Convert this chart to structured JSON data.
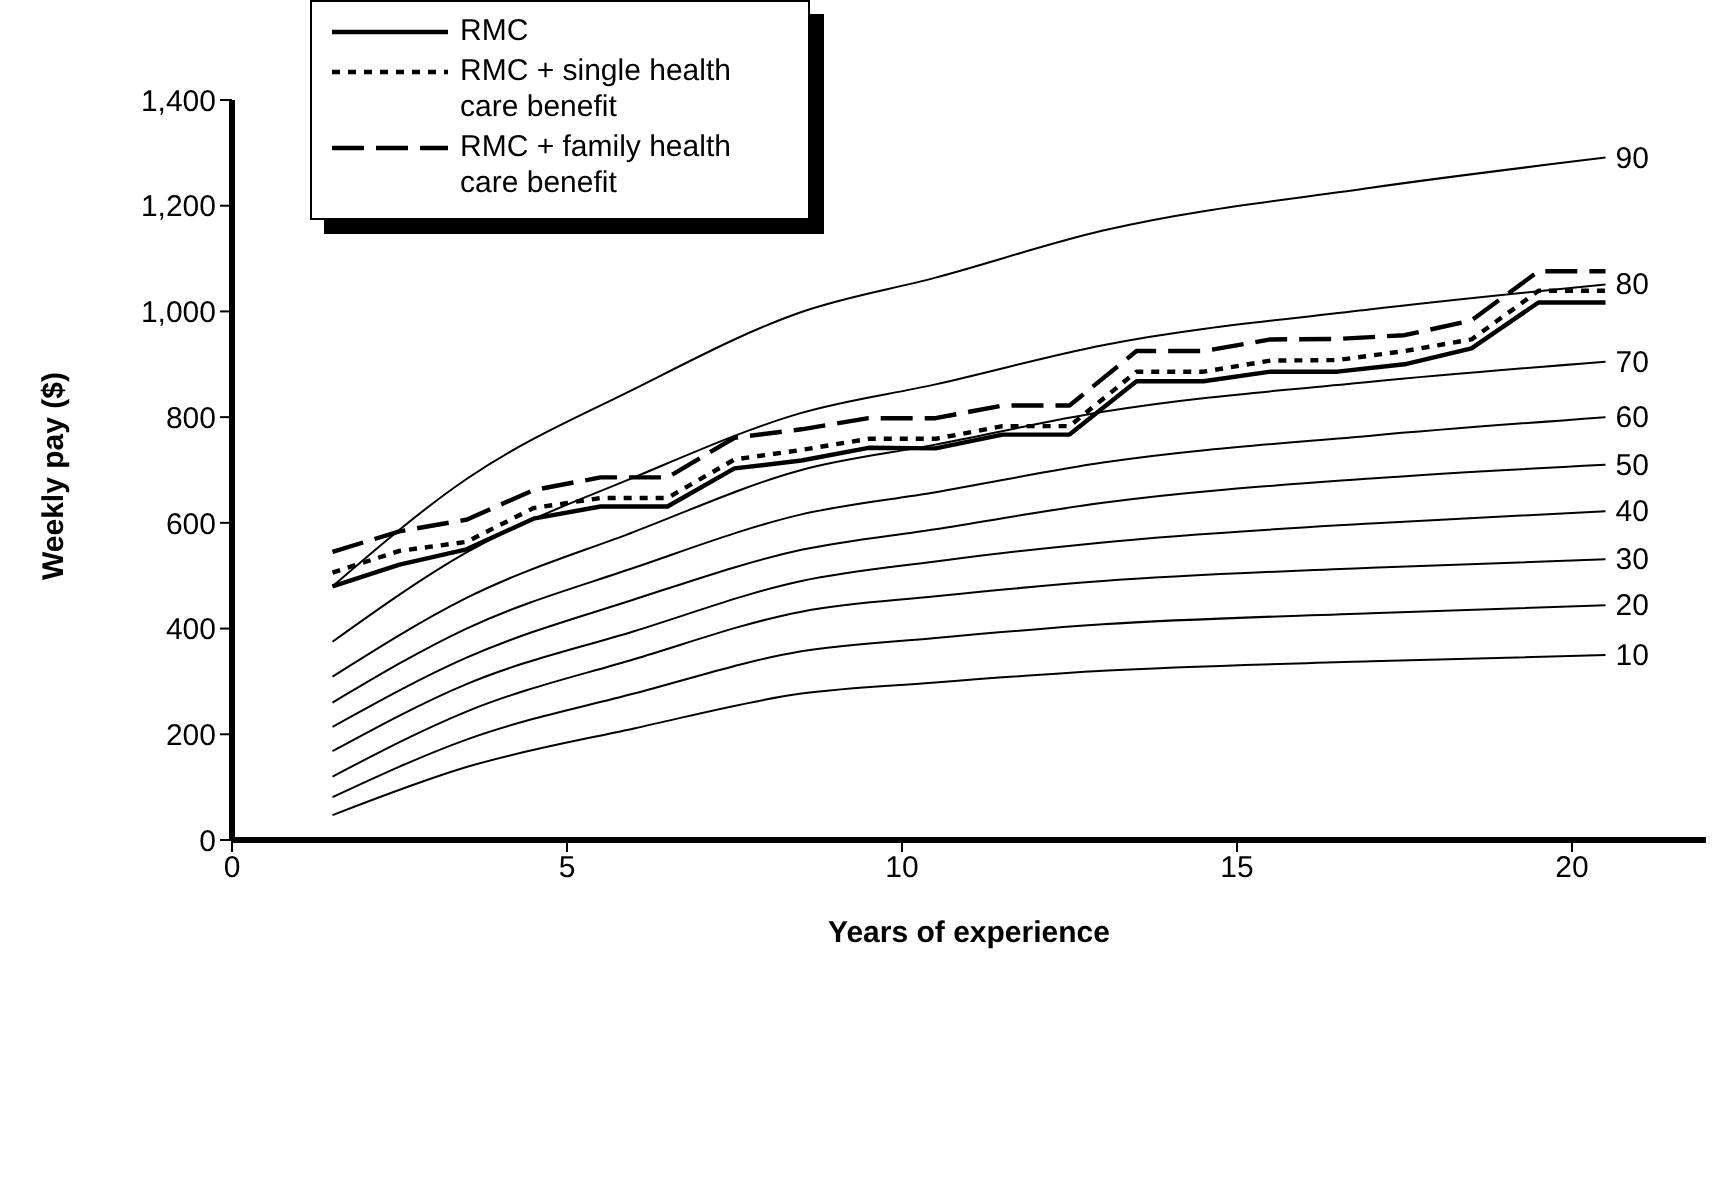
{
  "chart_data": {
    "type": "line",
    "xlabel": "Years of experience",
    "ylabel": "Weekly pay ($)",
    "xlim": [
      0,
      22
    ],
    "xticks": [
      0,
      5,
      10,
      15,
      20
    ],
    "ylim": [
      0,
      1400
    ],
    "yticks": [
      0,
      200,
      400,
      600,
      800,
      {
        "value": 1000,
        "label": "1,000"
      },
      {
        "value": 1200,
        "label": "1,200"
      },
      {
        "value": 1400,
        "label": "1,400"
      }
    ],
    "grid": false,
    "legend": "top left",
    "marker": "none",
    "series": [
      {
        "name": "RMC",
        "color": "#000000",
        "line_style": "solid",
        "x": [
          1.5,
          2.5,
          3.5,
          4.5,
          5.5,
          6.5,
          7.5,
          8.5,
          9.5,
          10.5,
          11.5,
          12.5,
          13.5,
          14.5,
          15.5,
          16.5,
          17.5,
          18.5,
          19.5,
          20.5
        ],
        "values": [
          480,
          521,
          550,
          608,
          631,
          631,
          703,
          718,
          742,
          741,
          767,
          767,
          868,
          868,
          886,
          886,
          900,
          930,
          1017,
          1017
        ]
      },
      {
        "name": "RMC + single health care benefit",
        "color": "#000000",
        "line_style": "dotted",
        "x": [
          1.5,
          2.5,
          3.5,
          4.5,
          5.5,
          6.5,
          7.5,
          8.5,
          9.5,
          10.5,
          11.5,
          12.5,
          13.5,
          14.5,
          15.5,
          16.5,
          17.5,
          18.5,
          19.5,
          20.5
        ],
        "values": [
          506,
          547,
          564,
          628,
          647,
          647,
          720,
          738,
          759,
          759,
          783,
          783,
          886,
          886,
          907,
          908,
          925,
          947,
          1039,
          1039
        ]
      },
      {
        "name": "RMC + family health care benefit",
        "color": "#000000",
        "line_style": "dashed",
        "x": [
          1.5,
          2.5,
          3.5,
          4.5,
          5.5,
          6.5,
          7.5,
          8.5,
          9.5,
          10.5,
          11.5,
          12.5,
          13.5,
          14.5,
          15.5,
          16.5,
          17.5,
          18.5,
          19.5,
          20.5
        ],
        "values": [
          545,
          584,
          606,
          662,
          686,
          686,
          761,
          777,
          798,
          798,
          822,
          822,
          925,
          925,
          947,
          948,
          955,
          983,
          1076,
          1076
        ]
      },
      {
        "name": "90",
        "color": "#000000",
        "line_style": "solid",
        "x": [
          1.5,
          3.5,
          6,
          8.5,
          10.5,
          13,
          17,
          20.5
        ],
        "values": [
          480,
          683,
          853,
          999,
          1064,
          1153,
          1234,
          1291
        ]
      },
      {
        "name": "80",
        "color": "#000000",
        "line_style": "solid",
        "x": [
          1.5,
          3.5,
          6,
          8.5,
          10.5,
          13,
          17,
          20.5
        ],
        "values": [
          375,
          544,
          686,
          808,
          862,
          936,
          1004,
          1051
        ]
      },
      {
        "name": "70",
        "color": "#000000",
        "line_style": "solid",
        "x": [
          1.5,
          3.5,
          6,
          8.5,
          10.5,
          13,
          17,
          20.5
        ],
        "values": [
          309,
          458,
          583,
          700,
          748,
          810,
          867,
          905
        ]
      },
      {
        "name": "60",
        "color": "#000000",
        "line_style": "solid",
        "x": [
          1.5,
          3.5,
          6,
          8.5,
          10.5,
          13,
          17,
          20.5
        ],
        "values": [
          260,
          400,
          515,
          616,
          658,
          714,
          765,
          800
        ]
      },
      {
        "name": "50",
        "color": "#000000",
        "line_style": "solid",
        "x": [
          1.5,
          3.5,
          6,
          8.5,
          10.5,
          13,
          17,
          20.5
        ],
        "values": [
          214,
          345,
          455,
          549,
          588,
          638,
          684,
          710
        ]
      },
      {
        "name": "40",
        "color": "#000000",
        "line_style": "solid",
        "x": [
          1.5,
          3.5,
          6,
          8.5,
          10.5,
          13,
          17,
          20.5
        ],
        "values": [
          168,
          295,
          395,
          490,
          527,
          563,
          599,
          622
        ]
      },
      {
        "name": "30",
        "color": "#000000",
        "line_style": "solid",
        "x": [
          1.5,
          3.5,
          6,
          8.5,
          10.5,
          13,
          17,
          20.5
        ],
        "values": [
          120,
          243,
          342,
          432,
          461,
          490,
          515,
          531
        ]
      },
      {
        "name": "20",
        "color": "#000000",
        "line_style": "solid",
        "x": [
          1.5,
          3.5,
          6,
          8.5,
          10.5,
          13,
          17,
          20.5
        ],
        "values": [
          81,
          190,
          277,
          357,
          382,
          408,
          429,
          444
        ]
      },
      {
        "name": "10",
        "color": "#000000",
        "line_style": "solid",
        "x": [
          1.5,
          3.5,
          6,
          8.5,
          10.5,
          13,
          17,
          20.5
        ],
        "values": [
          47,
          138,
          211,
          277,
          298,
          320,
          338,
          350
        ]
      }
    ]
  }
}
